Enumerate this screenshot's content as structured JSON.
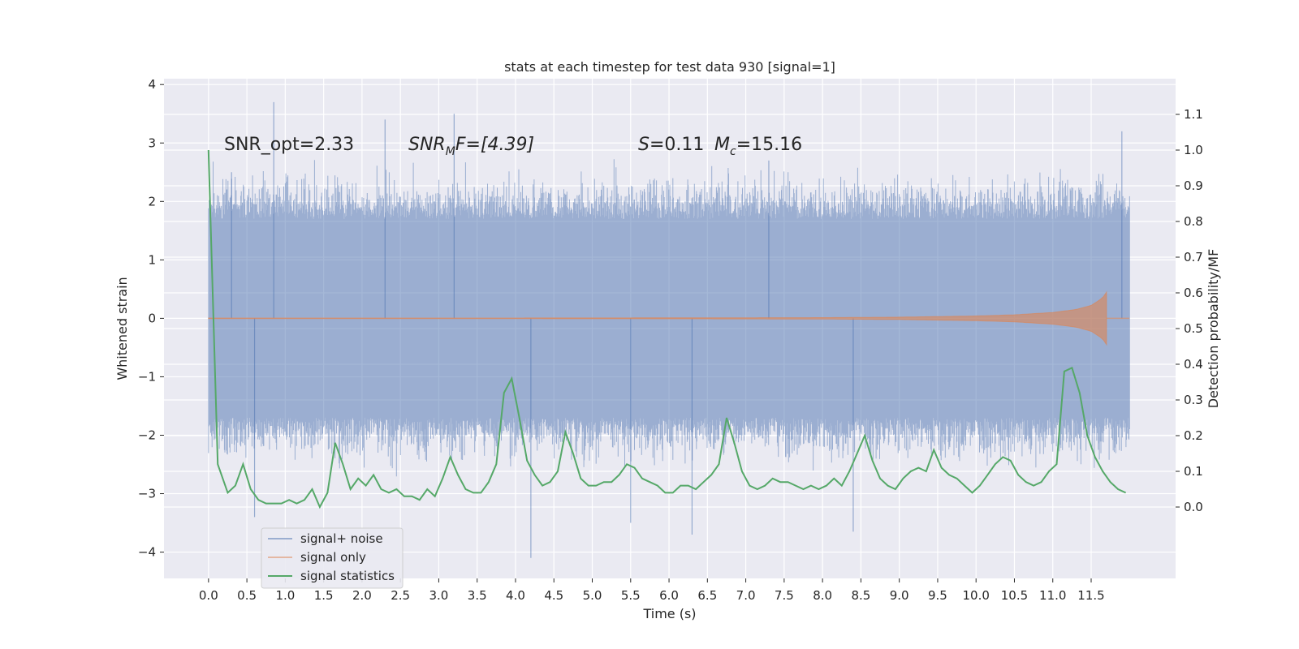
{
  "chart_data": {
    "type": "line",
    "title": "stats at each timestep for test data 930 [signal=1]",
    "xlabel": "Time (s)",
    "ylabel": "Whitened strain",
    "y2label": "Detection probability/MF",
    "xlim": [
      -0.58,
      12.6
    ],
    "ylim": [
      -4.45,
      4.1
    ],
    "y2lim": [
      -0.2,
      1.2
    ],
    "xticks": [
      "0.0",
      "0.5",
      "1.0",
      "1.5",
      "2.0",
      "2.5",
      "3.0",
      "3.5",
      "4.0",
      "4.5",
      "5.0",
      "5.5",
      "6.0",
      "6.5",
      "7.0",
      "7.5",
      "8.0",
      "8.5",
      "9.0",
      "9.5",
      "10.0",
      "10.5",
      "11.0",
      "11.5"
    ],
    "yticks": [
      "4",
      "3",
      "2",
      "1",
      "0",
      "−1",
      "−2",
      "−3",
      "−4"
    ],
    "y2ticks": [
      "1.1",
      "1.0",
      "0.9",
      "0.8",
      "0.7",
      "0.6",
      "0.5",
      "0.4",
      "0.3",
      "0.2",
      "0.1",
      "0.0"
    ],
    "grid": true,
    "legend_position": "lower-left",
    "annotations": {
      "snr_opt": "SNR_opt=2.33",
      "snr_mf_main": "SNR",
      "snr_mf_sub": "M",
      "snr_mf_rest": "F=[4.39]",
      "s_main": "S",
      "s_rest": "=0.11",
      "mc_main": "M",
      "mc_sub": "c",
      "mc_rest": "=15.16"
    },
    "series": [
      {
        "name": "signal+ noise",
        "color": "#4c72b0",
        "axis": "left",
        "x_range": [
          0.0,
          12.0
        ],
        "envelope_typical": 1.7,
        "peaks_high": [
          [
            0.85,
            3.7
          ],
          [
            3.2,
            3.5
          ],
          [
            0.3,
            2.5
          ],
          [
            7.3,
            2.7
          ],
          [
            11.9,
            3.2
          ],
          [
            2.3,
            3.4
          ]
        ],
        "peaks_low": [
          [
            4.2,
            -4.1
          ],
          [
            8.4,
            -3.65
          ],
          [
            6.3,
            -3.7
          ],
          [
            5.5,
            -3.5
          ],
          [
            0.6,
            -3.4
          ]
        ]
      },
      {
        "name": "signal only",
        "color": "#dd8452",
        "axis": "left",
        "x": [
          0.0,
          2.0,
          4.0,
          6.0,
          8.0,
          9.0,
          10.0,
          10.5,
          11.0,
          11.3,
          11.5,
          11.65,
          11.7
        ],
        "amplitude": [
          0.005,
          0.005,
          0.006,
          0.008,
          0.012,
          0.02,
          0.04,
          0.06,
          0.1,
          0.15,
          0.22,
          0.35,
          0.45
        ]
      },
      {
        "name": "signal statistics",
        "color": "#55a868",
        "axis": "right",
        "x": [
          0.0,
          0.12,
          0.25,
          0.35,
          0.45,
          0.55,
          0.65,
          0.75,
          0.85,
          0.95,
          1.05,
          1.15,
          1.25,
          1.35,
          1.45,
          1.55,
          1.65,
          1.75,
          1.85,
          1.95,
          2.05,
          2.15,
          2.25,
          2.35,
          2.45,
          2.55,
          2.65,
          2.75,
          2.85,
          2.95,
          3.05,
          3.15,
          3.25,
          3.35,
          3.45,
          3.55,
          3.65,
          3.75,
          3.85,
          3.95,
          4.05,
          4.15,
          4.25,
          4.35,
          4.45,
          4.55,
          4.65,
          4.75,
          4.85,
          4.95,
          5.05,
          5.15,
          5.25,
          5.35,
          5.45,
          5.55,
          5.65,
          5.75,
          5.85,
          5.95,
          6.05,
          6.15,
          6.25,
          6.35,
          6.45,
          6.55,
          6.65,
          6.75,
          6.85,
          6.95,
          7.05,
          7.15,
          7.25,
          7.35,
          7.45,
          7.55,
          7.65,
          7.75,
          7.85,
          7.95,
          8.05,
          8.15,
          8.25,
          8.35,
          8.45,
          8.55,
          8.65,
          8.75,
          8.85,
          8.95,
          9.05,
          9.15,
          9.25,
          9.35,
          9.45,
          9.55,
          9.65,
          9.75,
          9.85,
          9.95,
          10.05,
          10.15,
          10.25,
          10.35,
          10.45,
          10.55,
          10.65,
          10.75,
          10.85,
          10.95,
          11.05,
          11.15,
          11.25,
          11.35,
          11.45,
          11.55,
          11.65,
          11.75,
          11.85,
          11.95
        ],
        "values": [
          1.0,
          0.12,
          0.04,
          0.06,
          0.12,
          0.05,
          0.02,
          0.01,
          0.01,
          0.01,
          0.02,
          0.01,
          0.02,
          0.05,
          0.0,
          0.04,
          0.18,
          0.12,
          0.05,
          0.08,
          0.06,
          0.09,
          0.05,
          0.04,
          0.05,
          0.03,
          0.03,
          0.02,
          0.05,
          0.03,
          0.08,
          0.14,
          0.09,
          0.05,
          0.04,
          0.04,
          0.07,
          0.12,
          0.32,
          0.36,
          0.25,
          0.13,
          0.09,
          0.06,
          0.07,
          0.1,
          0.21,
          0.15,
          0.08,
          0.06,
          0.06,
          0.07,
          0.07,
          0.09,
          0.12,
          0.11,
          0.08,
          0.07,
          0.06,
          0.04,
          0.04,
          0.06,
          0.06,
          0.05,
          0.07,
          0.09,
          0.12,
          0.25,
          0.18,
          0.1,
          0.06,
          0.05,
          0.06,
          0.08,
          0.07,
          0.07,
          0.06,
          0.05,
          0.06,
          0.05,
          0.06,
          0.08,
          0.06,
          0.1,
          0.15,
          0.2,
          0.13,
          0.08,
          0.06,
          0.05,
          0.08,
          0.1,
          0.11,
          0.1,
          0.16,
          0.11,
          0.09,
          0.08,
          0.06,
          0.04,
          0.06,
          0.09,
          0.12,
          0.14,
          0.13,
          0.09,
          0.07,
          0.06,
          0.07,
          0.1,
          0.12,
          0.38,
          0.39,
          0.32,
          0.2,
          0.14,
          0.1,
          0.07,
          0.05,
          0.04
        ]
      }
    ]
  }
}
